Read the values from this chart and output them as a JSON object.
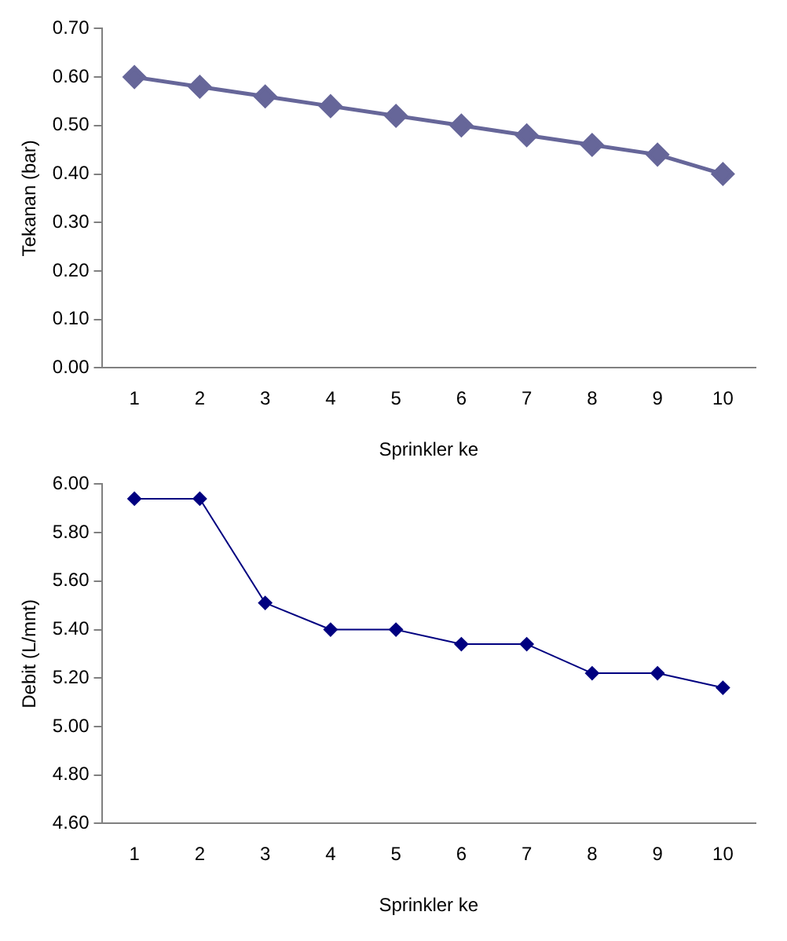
{
  "chart_data": [
    {
      "type": "line",
      "xlabel": "Sprinkler ke",
      "ylabel": "Tekanan (bar)",
      "categories": [
        "1",
        "2",
        "3",
        "4",
        "5",
        "6",
        "7",
        "8",
        "9",
        "10"
      ],
      "series": [
        {
          "color": "#666699",
          "values": [
            0.6,
            0.58,
            0.56,
            0.54,
            0.52,
            0.5,
            0.48,
            0.46,
            0.44,
            0.4
          ]
        }
      ],
      "ylim": [
        0,
        0.7
      ],
      "yticks": [
        {
          "value": 0,
          "label": "0.00"
        },
        {
          "value": 0.1,
          "label": "0.10"
        },
        {
          "value": 0.2,
          "label": "0.20"
        },
        {
          "value": 0.3,
          "label": "0.30"
        },
        {
          "value": 0.4,
          "label": "0.40"
        },
        {
          "value": 0.5,
          "label": "0.50"
        },
        {
          "value": 0.6,
          "label": "0.60"
        },
        {
          "value": 0.7,
          "label": "0.70"
        }
      ],
      "marker": "diamond",
      "grid": false,
      "legend": false
    },
    {
      "type": "line",
      "xlabel": "Sprinkler ke",
      "ylabel": "Debit (L/mnt)",
      "categories": [
        "1",
        "2",
        "3",
        "4",
        "5",
        "6",
        "7",
        "8",
        "9",
        "10"
      ],
      "series": [
        {
          "color": "#000080",
          "values": [
            5.94,
            5.94,
            5.51,
            5.4,
            5.4,
            5.34,
            5.34,
            5.22,
            5.22,
            5.16
          ]
        }
      ],
      "ylim": [
        4.6,
        6.0
      ],
      "yticks": [
        {
          "value": 4.6,
          "label": "4.60"
        },
        {
          "value": 4.8,
          "label": "4.80"
        },
        {
          "value": 5.0,
          "label": "5.00"
        },
        {
          "value": 5.2,
          "label": "5.20"
        },
        {
          "value": 5.4,
          "label": "5.40"
        },
        {
          "value": 5.6,
          "label": "5.60"
        },
        {
          "value": 5.8,
          "label": "5.80"
        },
        {
          "value": 6.0,
          "label": "6.00"
        }
      ],
      "marker": "diamond",
      "grid": false,
      "legend": false
    }
  ]
}
